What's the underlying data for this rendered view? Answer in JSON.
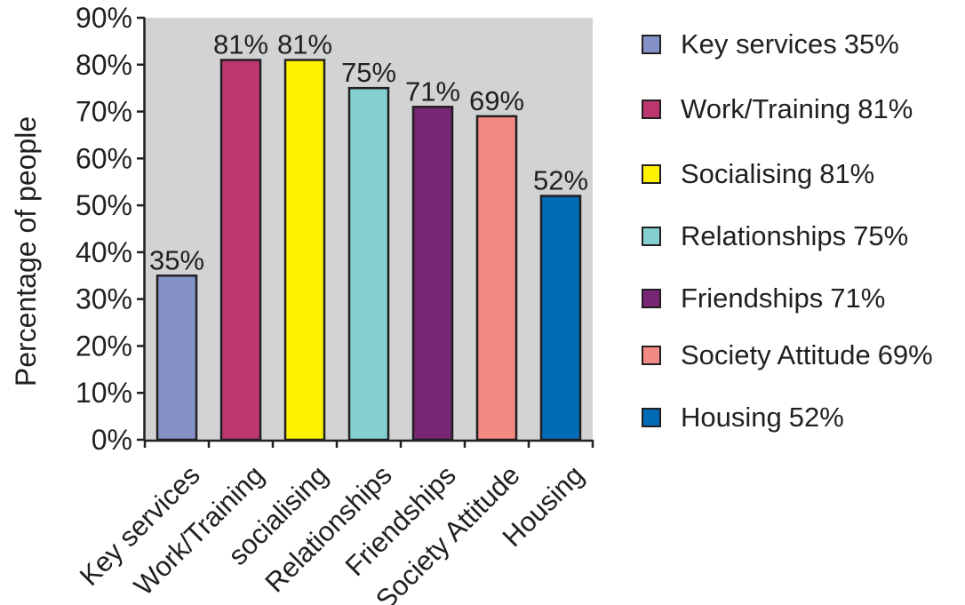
{
  "chart_data": {
    "type": "bar",
    "ylabel": "Percentage of people",
    "ylim": [
      0,
      90
    ],
    "yticks": [
      0,
      10,
      20,
      30,
      40,
      50,
      60,
      70,
      80,
      90
    ],
    "ytick_labels": [
      "0%",
      "10%",
      "20%",
      "30%",
      "40%",
      "50%",
      "60%",
      "70%",
      "80%",
      "90%"
    ],
    "categories": [
      "Key services",
      "Work/Training",
      "socialising",
      "Relationships",
      "Friendships",
      "Society Attitude",
      "Housing"
    ],
    "values": [
      35,
      81,
      81,
      75,
      71,
      69,
      52
    ],
    "data_labels": [
      "35%",
      "81%",
      "81%",
      "75%",
      "71%",
      "69%",
      "52%"
    ],
    "colors": [
      "#8592c8",
      "#bc3670",
      "#fff200",
      "#84d0d0",
      "#762673",
      "#f28b82",
      "#006cb6"
    ],
    "background": "#d1d3d4",
    "grid": false,
    "legend_position": "right",
    "legend": [
      {
        "label": "Key services",
        "value": "35%",
        "color": "#8592c8"
      },
      {
        "label": "Work/Training",
        "value": "81%",
        "color": "#bc3670"
      },
      {
        "label": "Socialising",
        "value": "81%",
        "color": "#fff200"
      },
      {
        "label": "Relationships",
        "value": "75%",
        "color": "#84d0d0"
      },
      {
        "label": "Friendships",
        "value": "71%",
        "color": "#762673"
      },
      {
        "label": "Society Attitude",
        "value": "69%",
        "color": "#f28b82"
      },
      {
        "label": "Housing",
        "value": "52%",
        "color": "#006cb6"
      }
    ]
  }
}
